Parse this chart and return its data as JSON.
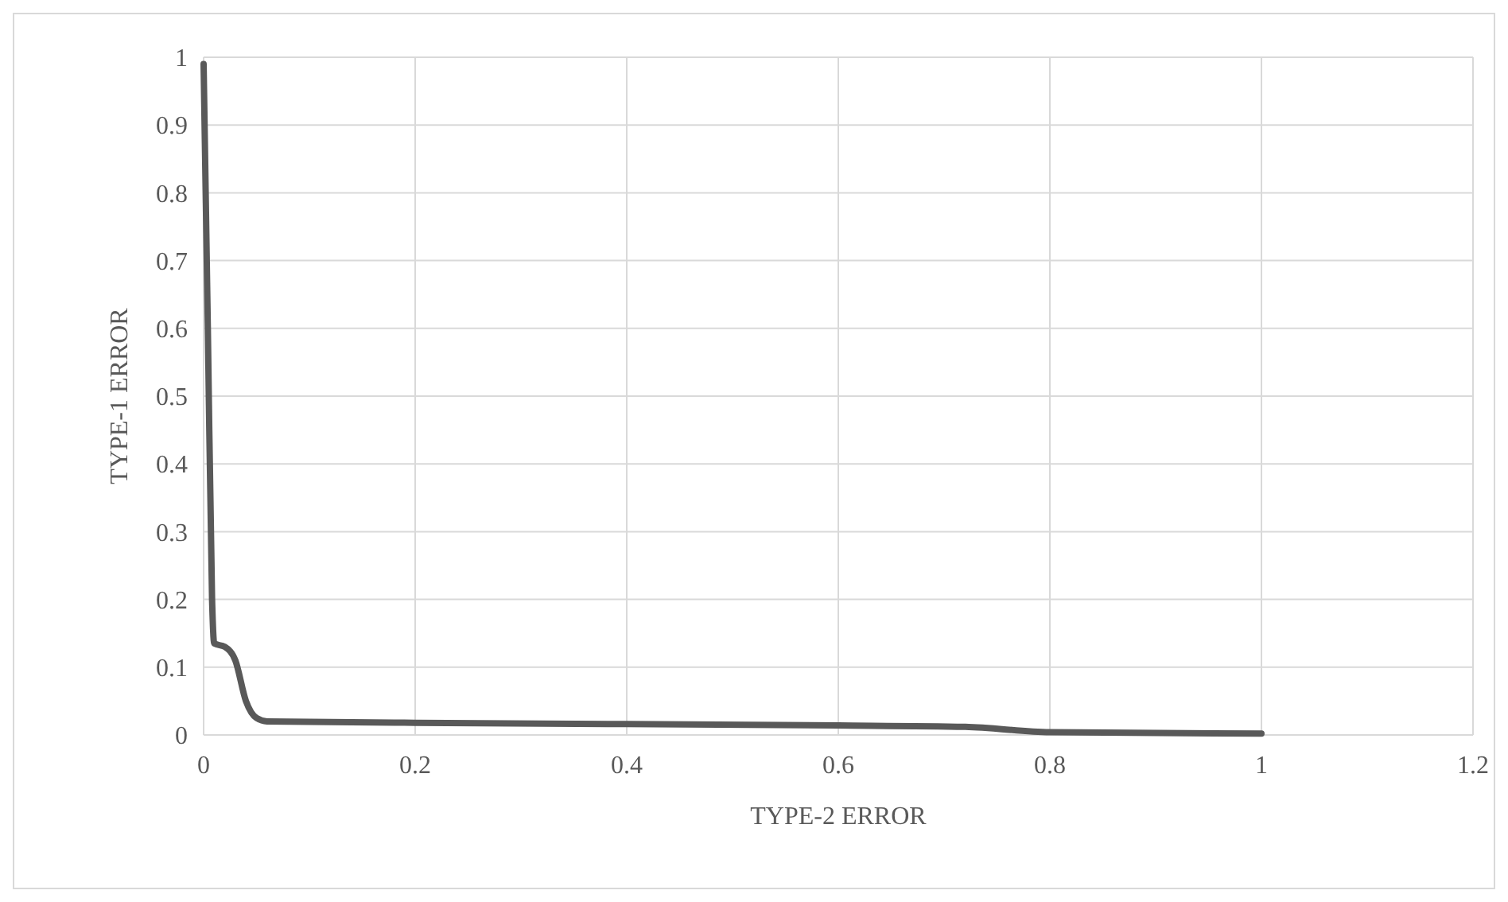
{
  "chart_data": {
    "type": "line",
    "xlabel": "TYPE-2 ERROR",
    "ylabel": "TYPE-1 ERROR",
    "series": [
      {
        "color": "#595959",
        "x": [
          0,
          0.004,
          0.008,
          0.01,
          0.02,
          0.03,
          0.04,
          0.05,
          0.06,
          0.2,
          0.4,
          0.6,
          0.72,
          0.8,
          1
        ],
        "values": [
          0.99,
          0.6,
          0.2,
          0.135,
          0.13,
          0.11,
          0.05,
          0.025,
          0.02,
          0.018,
          0.016,
          0.014,
          0.012,
          0.004,
          0.002
        ]
      }
    ],
    "xlim": [
      0,
      1.2
    ],
    "xticks": [
      0,
      0.2,
      0.4,
      0.6,
      0.8,
      1,
      1.2
    ],
    "ylim": [
      0,
      1
    ],
    "yticks": [
      0,
      0.1,
      0.2,
      0.3,
      0.4,
      0.5,
      0.6,
      0.7,
      0.8,
      0.9,
      1
    ],
    "grid": true,
    "marker": "none",
    "line_style": "solid"
  }
}
